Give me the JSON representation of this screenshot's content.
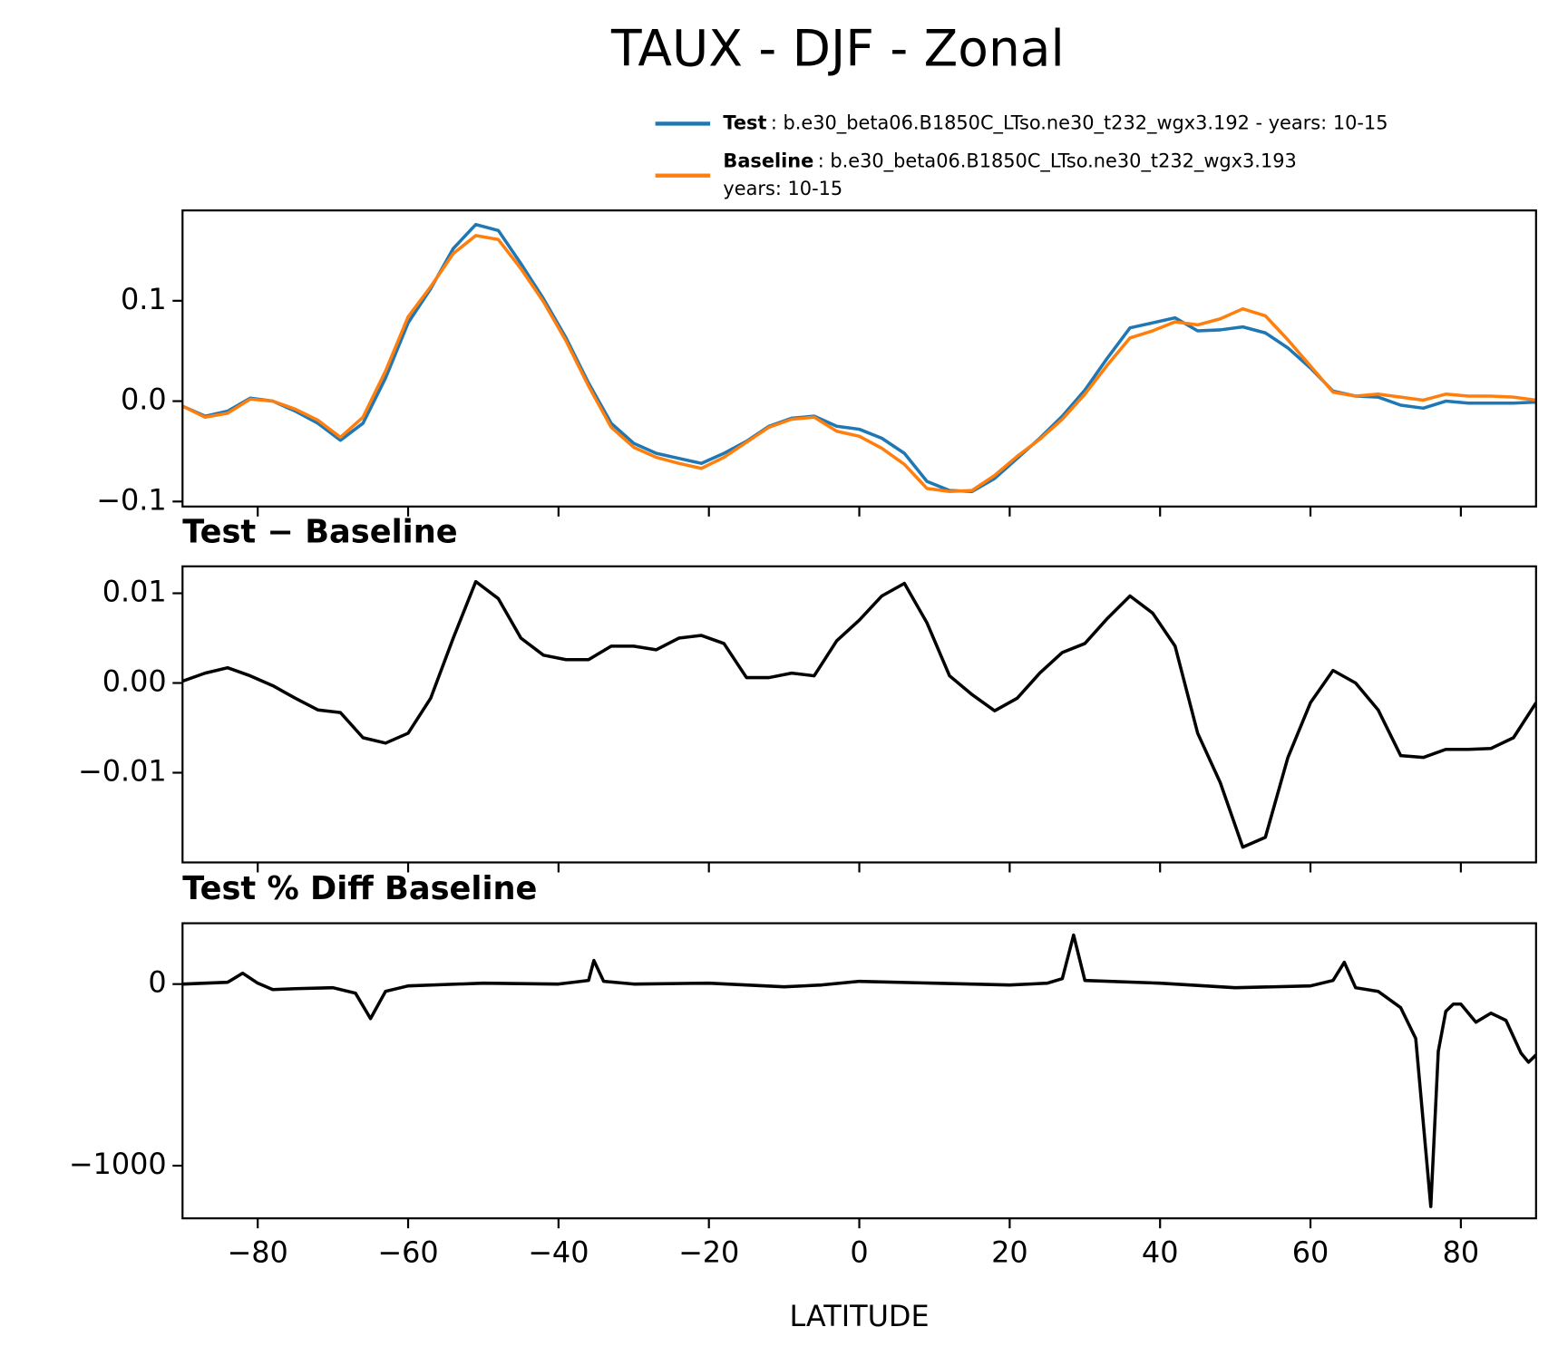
{
  "title": "TAUX - DJF - Zonal",
  "chart_data": [
    {
      "type": "line",
      "x": [
        -90,
        -87,
        -84,
        -81,
        -78,
        -75,
        -72,
        -69,
        -66,
        -63,
        -60,
        -57,
        -54,
        -51,
        -48,
        -45,
        -42,
        -39,
        -36,
        -33,
        -30,
        -27,
        -24,
        -21,
        -18,
        -15,
        -12,
        -9,
        -6,
        -3,
        0,
        3,
        6,
        9,
        12,
        15,
        18,
        21,
        24,
        27,
        30,
        33,
        36,
        39,
        42,
        45,
        48,
        51,
        54,
        57,
        60,
        63,
        66,
        69,
        72,
        75,
        78,
        81,
        84,
        87,
        90
      ],
      "series": [
        {
          "name": "Test",
          "description": [
            ": b.e30_beta06.B1850C_LTso.ne30_t232_wgx3.192 - years: 10-15"
          ],
          "color": "#1f77b4",
          "values": [
            -0.005,
            -0.015,
            -0.01,
            0.003,
            0.0,
            -0.01,
            -0.022,
            -0.039,
            -0.022,
            0.023,
            0.078,
            0.112,
            0.152,
            0.176,
            0.17,
            0.137,
            0.102,
            0.063,
            0.018,
            -0.022,
            -0.042,
            -0.052,
            -0.057,
            -0.062,
            -0.052,
            -0.04,
            -0.025,
            -0.017,
            -0.015,
            -0.025,
            -0.028,
            -0.037,
            -0.052,
            -0.08,
            -0.089,
            -0.09,
            -0.077,
            -0.057,
            -0.037,
            -0.015,
            0.011,
            0.043,
            0.073,
            0.078,
            0.083,
            0.07,
            0.071,
            0.074,
            0.068,
            0.053,
            0.033,
            0.01,
            0.005,
            0.004,
            -0.004,
            -0.007,
            0.0,
            -0.002,
            -0.002,
            -0.002,
            -0.001
          ]
        },
        {
          "name": "Baseline",
          "description": [
            ": b.e30_beta06.B1850C_LTso.ne30_t232_wgx3.193",
            "years: 10-15"
          ],
          "color": "#ff7f0e",
          "values": [
            -0.005,
            -0.016,
            -0.012,
            0.002,
            0.0,
            -0.008,
            -0.019,
            -0.036,
            -0.016,
            0.03,
            0.084,
            0.114,
            0.147,
            0.165,
            0.161,
            0.132,
            0.099,
            0.06,
            0.015,
            -0.026,
            -0.046,
            -0.056,
            -0.062,
            -0.067,
            -0.056,
            -0.041,
            -0.026,
            -0.018,
            -0.016,
            -0.03,
            -0.035,
            -0.047,
            -0.063,
            -0.087,
            -0.09,
            -0.089,
            -0.074,
            -0.055,
            -0.038,
            -0.018,
            0.007,
            0.036,
            0.063,
            0.07,
            0.079,
            0.076,
            0.082,
            0.092,
            0.085,
            0.061,
            0.035,
            0.009,
            0.005,
            0.007,
            0.004,
            0.001,
            0.007,
            0.005,
            0.005,
            0.004,
            0.001
          ]
        }
      ],
      "xlim": [
        -90,
        90
      ],
      "xticks": [
        -80,
        -60,
        -40,
        -20,
        0,
        20,
        40,
        60,
        80
      ],
      "ylim": [
        -0.105,
        0.19
      ],
      "yticks": [
        {
          "value": -0.1,
          "label": "−0.1"
        },
        {
          "value": 0,
          "label": "0.0"
        },
        0.1
      ]
    },
    {
      "type": "line",
      "title": "Test − Baseline",
      "x": [
        -90,
        -87,
        -84,
        -81,
        -78,
        -75,
        -72,
        -69,
        -66,
        -63,
        -60,
        -57,
        -54,
        -51,
        -48,
        -45,
        -42,
        -39,
        -36,
        -33,
        -30,
        -27,
        -24,
        -21,
        -18,
        -15,
        -12,
        -9,
        -6,
        -3,
        0,
        3,
        6,
        9,
        12,
        15,
        18,
        21,
        24,
        27,
        30,
        33,
        36,
        39,
        42,
        45,
        48,
        51,
        54,
        57,
        60,
        63,
        66,
        69,
        72,
        75,
        78,
        81,
        84,
        87,
        90
      ],
      "series": [
        {
          "color": "#000000",
          "values": [
            0.0002,
            0.0011,
            0.0017,
            0.0008,
            -0.0003,
            -0.0017,
            -0.003,
            -0.0033,
            -0.0061,
            -0.0067,
            -0.0056,
            -0.0017,
            0.005,
            0.0113,
            0.0094,
            0.005,
            0.0031,
            0.0026,
            0.0026,
            0.0041,
            0.0041,
            0.0037,
            0.005,
            0.0053,
            0.0044,
            0.0006,
            0.0006,
            0.0011,
            0.0008,
            0.0047,
            0.007,
            0.0097,
            0.0111,
            0.0067,
            0.0008,
            -0.0013,
            -0.0031,
            -0.0017,
            0.0011,
            0.0034,
            0.0044,
            0.0072,
            0.0097,
            0.0078,
            0.0041,
            -0.0056,
            -0.0111,
            -0.0183,
            -0.0172,
            -0.0083,
            -0.0022,
            0.0014,
            0.0,
            -0.003,
            -0.0081,
            -0.0083,
            -0.0074,
            -0.0074,
            -0.0073,
            -0.0061,
            -0.0022
          ]
        }
      ],
      "xlim": [
        -90,
        90
      ],
      "xticks": [
        -80,
        -60,
        -40,
        -20,
        0,
        20,
        40,
        60,
        80
      ],
      "ylim": [
        -0.02,
        0.013
      ],
      "yticks": [
        {
          "value": -0.01,
          "label": "−0.01"
        },
        {
          "value": 0,
          "label": "0.00"
        },
        0.01
      ]
    },
    {
      "type": "line",
      "title": "Test % Diff Baseline",
      "xlabel": "LATITUDE",
      "x": [
        -90,
        -84,
        -82,
        -80,
        -78,
        -75,
        -70,
        -67,
        -65,
        -63,
        -60,
        -50,
        -40,
        -36,
        -35.3,
        -34,
        -30,
        -20,
        -10,
        -5,
        0,
        10,
        20,
        25,
        27,
        28.5,
        30,
        40,
        50,
        60,
        63,
        64.5,
        66,
        69,
        72,
        74,
        76,
        77,
        78,
        79,
        80,
        82,
        84,
        86,
        88,
        89,
        90
      ],
      "series": [
        {
          "color": "#000000",
          "values": [
            0,
            10,
            60,
            5,
            -30,
            -25,
            -20,
            -50,
            -190,
            -40,
            -10,
            5,
            0,
            20,
            130,
            15,
            0,
            5,
            -15,
            -5,
            15,
            5,
            -5,
            5,
            30,
            270,
            20,
            5,
            -20,
            -10,
            20,
            120,
            -20,
            -40,
            -130,
            -300,
            -1225,
            -370,
            -150,
            -110,
            -110,
            -210,
            -160,
            -200,
            -380,
            -430,
            -390
          ]
        }
      ],
      "xlim": [
        -90,
        90
      ],
      "xticks": [
        {
          "value": -80,
          "label": "−80"
        },
        {
          "value": -60,
          "label": "−60"
        },
        {
          "value": -40,
          "label": "−40"
        },
        {
          "value": -20,
          "label": "−20"
        },
        0,
        20,
        40,
        60,
        80
      ],
      "ylim": [
        -1290,
        335
      ],
      "yticks": [
        {
          "value": -1000,
          "label": "−1000"
        },
        0
      ]
    }
  ]
}
